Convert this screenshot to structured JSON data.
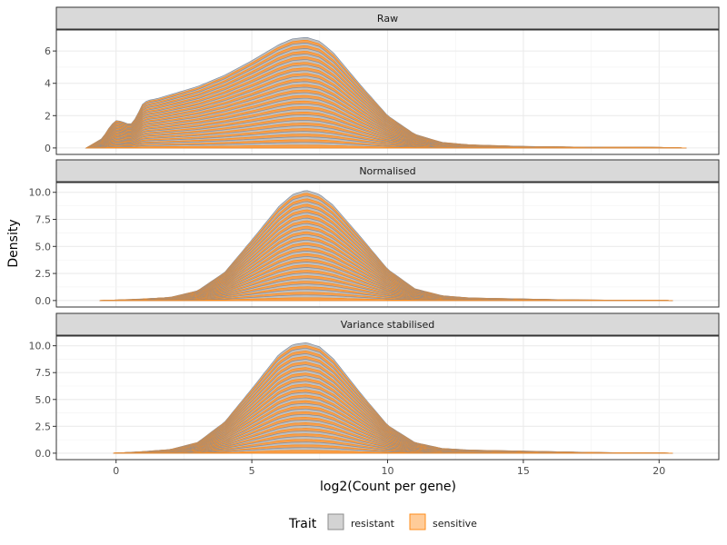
{
  "chart_data": {
    "type": "area",
    "ylabel": "Density",
    "xlabel": "log2(Count per gene)",
    "xlim": [
      -2.2,
      22.2
    ],
    "x_ticks": [
      0,
      5,
      10,
      15,
      20
    ],
    "x_tick_labels": [
      "0",
      "5",
      "10",
      "15",
      "20"
    ],
    "stacked": true,
    "grid": true,
    "legend": {
      "title": "Trait",
      "position": "bottom",
      "entries": [
        {
          "label": "resistant",
          "fill": "#d3d3d3",
          "stroke": "#8c8c8c"
        },
        {
          "label": "sensitive",
          "fill": "#ffcc99",
          "stroke": "#ff8c1a"
        }
      ]
    },
    "colors": {
      "resistant_fill": "#bfbfbf",
      "resistant_line": "#7f8ea3",
      "sensitive_fill": "#f5a050",
      "sensitive_line": "#ff8c1a",
      "strip_bg": "#d9d9d9",
      "grid": "#ebebeb"
    },
    "panels": [
      {
        "label": "Raw",
        "ylim": [
          -0.4,
          7.3
        ],
        "y_ticks": [
          0,
          2,
          4,
          6
        ],
        "y_tick_labels": [
          "0",
          "2",
          "4",
          "6"
        ],
        "x_range": [
          -1.1,
          21.0
        ],
        "stack_total": {
          "x": [
            -1.1,
            -0.5,
            -0.2,
            0.0,
            0.2,
            0.4,
            0.6,
            0.8,
            1.0,
            1.2,
            1.5,
            2,
            3,
            4,
            5,
            6,
            6.5,
            7,
            7.5,
            8,
            9,
            10,
            11,
            12,
            13,
            14,
            15,
            16,
            17,
            18,
            19,
            20,
            21.0
          ],
          "y": [
            0.0,
            0.6,
            1.4,
            1.7,
            1.65,
            1.5,
            1.5,
            2.1,
            2.8,
            2.95,
            3.05,
            3.3,
            3.8,
            4.5,
            5.4,
            6.4,
            6.75,
            6.85,
            6.6,
            5.9,
            3.9,
            2.0,
            0.85,
            0.35,
            0.2,
            0.15,
            0.1,
            0.08,
            0.06,
            0.05,
            0.05,
            0.04,
            0.0
          ]
        },
        "n_samples": 40
      },
      {
        "label": "Normalised",
        "ylim": [
          -0.6,
          10.9
        ],
        "y_ticks": [
          0,
          2.5,
          5,
          7.5,
          10
        ],
        "y_tick_labels": [
          "0.0",
          "2.5",
          "5.0",
          "7.5",
          "10.0"
        ],
        "x_range": [
          -0.6,
          20.5
        ],
        "stack_total": {
          "x": [
            -0.6,
            0,
            1,
            2,
            3,
            4,
            5,
            6,
            6.5,
            7,
            7.5,
            8,
            9,
            10,
            11,
            12,
            13,
            14,
            15,
            16,
            17,
            18,
            19,
            20,
            20.5
          ],
          "y": [
            0.0,
            0.05,
            0.15,
            0.3,
            0.9,
            2.6,
            5.6,
            8.7,
            9.8,
            10.2,
            9.8,
            8.8,
            5.9,
            2.9,
            1.1,
            0.45,
            0.25,
            0.2,
            0.15,
            0.1,
            0.06,
            0.05,
            0.04,
            0.03,
            0.0
          ]
        },
        "n_samples": 40
      },
      {
        "label": "Variance stabilised",
        "ylim": [
          -0.6,
          10.9
        ],
        "y_ticks": [
          0,
          2.5,
          5,
          7.5,
          10
        ],
        "y_tick_labels": [
          "0.0",
          "2.5",
          "5.0",
          "7.5",
          "10.0"
        ],
        "x_range": [
          -0.1,
          20.5
        ],
        "stack_total": {
          "x": [
            -0.1,
            0.5,
            1,
            2,
            3,
            4,
            5,
            6,
            6.5,
            7,
            7.5,
            8,
            9,
            10,
            11,
            12,
            13,
            14,
            15,
            16,
            17,
            18,
            19,
            20,
            20.5
          ],
          "y": [
            0.0,
            0.08,
            0.15,
            0.35,
            1.0,
            2.9,
            6.0,
            9.2,
            10.1,
            10.3,
            9.9,
            8.8,
            5.6,
            2.6,
            1.0,
            0.45,
            0.3,
            0.25,
            0.2,
            0.15,
            0.1,
            0.06,
            0.04,
            0.03,
            0.0
          ]
        },
        "n_samples": 40
      }
    ]
  }
}
